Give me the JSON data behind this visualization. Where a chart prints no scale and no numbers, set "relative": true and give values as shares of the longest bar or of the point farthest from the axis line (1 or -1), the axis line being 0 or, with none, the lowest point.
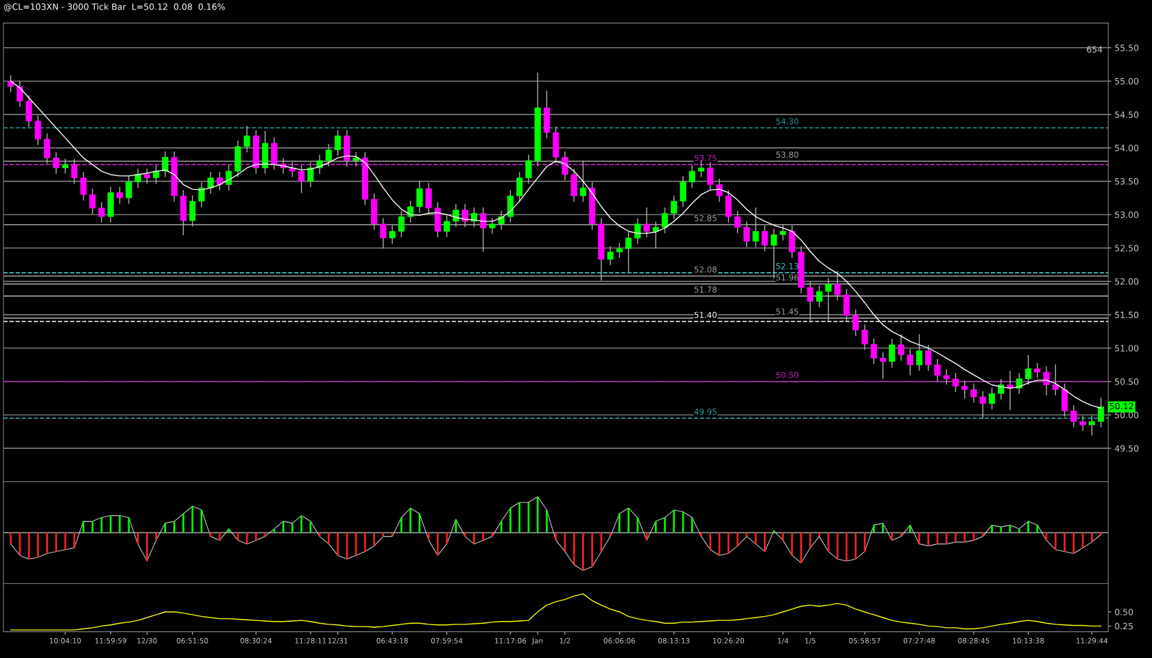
{
  "chart_data": [
    {
      "type": "candlestick",
      "title": "@CL=103XN - 3000 Tick Bar  L=50.12  0.08  0.16%",
      "categories": [
        null,
        null,
        null,
        null,
        null,
        null,
        null,
        null,
        null,
        null,
        null,
        null,
        null,
        null,
        null,
        null,
        null,
        null,
        null,
        null,
        null,
        null,
        null,
        null,
        null,
        null,
        null,
        null,
        null,
        null,
        null,
        null,
        null,
        null,
        null,
        null,
        null,
        null,
        null,
        null,
        null,
        null,
        null,
        null,
        null,
        null,
        null,
        null,
        null,
        null,
        null,
        null,
        null,
        null,
        null,
        null,
        null,
        null,
        null,
        null,
        null,
        null,
        null,
        null,
        null,
        null,
        null,
        null,
        null,
        null,
        null,
        null,
        null,
        null,
        null,
        null,
        null,
        null,
        null,
        null,
        null,
        null,
        null,
        null,
        null,
        null,
        null,
        null,
        null,
        null,
        null,
        null,
        null,
        null,
        null,
        null,
        null,
        null,
        null,
        null,
        null,
        null,
        null,
        null,
        null,
        null,
        null,
        null,
        null,
        null,
        null,
        null,
        null,
        null,
        null,
        null,
        null,
        null,
        null,
        null,
        null
      ],
      "ohlc": [
        [
          55.0,
          55.08,
          54.84,
          54.92
        ],
        [
          54.92,
          55.0,
          54.62,
          54.7
        ],
        [
          54.7,
          54.78,
          54.32,
          54.4
        ],
        [
          54.4,
          54.48,
          54.05,
          54.13
        ],
        [
          54.13,
          54.21,
          53.77,
          53.85
        ],
        [
          53.85,
          53.93,
          53.62,
          53.7
        ],
        [
          53.7,
          53.83,
          53.62,
          53.75
        ],
        [
          53.75,
          53.83,
          53.47,
          53.55
        ],
        [
          53.55,
          53.63,
          53.22,
          53.3
        ],
        [
          53.3,
          53.38,
          53.02,
          53.1
        ],
        [
          53.1,
          53.18,
          52.89,
          52.97
        ],
        [
          52.97,
          53.41,
          52.89,
          53.33
        ],
        [
          53.33,
          53.41,
          53.17,
          53.25
        ],
        [
          53.25,
          53.57,
          53.17,
          53.49
        ],
        [
          53.49,
          53.68,
          53.41,
          53.6
        ],
        [
          53.6,
          53.68,
          53.47,
          53.55
        ],
        [
          53.55,
          53.73,
          53.47,
          53.65
        ],
        [
          53.65,
          53.94,
          53.57,
          53.86
        ],
        [
          53.86,
          53.94,
          53.2,
          53.28
        ],
        [
          53.28,
          53.36,
          52.7,
          52.91
        ],
        [
          52.91,
          53.28,
          52.83,
          53.2
        ],
        [
          53.2,
          53.48,
          53.12,
          53.4
        ],
        [
          53.4,
          53.63,
          53.32,
          53.55
        ],
        [
          53.55,
          53.63,
          53.37,
          53.45
        ],
        [
          53.45,
          53.73,
          53.37,
          53.65
        ],
        [
          53.65,
          54.1,
          53.57,
          54.02
        ],
        [
          54.02,
          54.32,
          53.94,
          54.18
        ],
        [
          54.18,
          54.26,
          53.62,
          53.7
        ],
        [
          53.7,
          54.25,
          53.62,
          54.07
        ],
        [
          54.07,
          54.15,
          53.68,
          53.76
        ],
        [
          53.76,
          53.84,
          53.62,
          53.7
        ],
        [
          53.7,
          53.78,
          53.57,
          53.65
        ],
        [
          53.65,
          53.73,
          53.33,
          53.5
        ],
        [
          53.5,
          53.78,
          53.42,
          53.7
        ],
        [
          53.7,
          53.89,
          53.62,
          53.81
        ],
        [
          53.81,
          54.05,
          53.73,
          53.97
        ],
        [
          53.97,
          54.26,
          53.89,
          54.18
        ],
        [
          54.18,
          54.26,
          53.73,
          53.81
        ],
        [
          53.81,
          53.93,
          53.73,
          53.85
        ],
        [
          53.85,
          53.93,
          53.15,
          53.23
        ],
        [
          53.23,
          53.31,
          52.78,
          52.86
        ],
        [
          52.86,
          52.94,
          52.5,
          52.65
        ],
        [
          52.65,
          52.83,
          52.57,
          52.75
        ],
        [
          52.75,
          53.05,
          52.67,
          52.97
        ],
        [
          52.97,
          53.2,
          52.89,
          53.12
        ],
        [
          53.12,
          53.5,
          53.04,
          53.39
        ],
        [
          53.39,
          53.47,
          53.02,
          53.1
        ],
        [
          53.1,
          53.18,
          52.67,
          52.75
        ],
        [
          52.75,
          52.98,
          52.67,
          52.9
        ],
        [
          52.9,
          53.15,
          52.82,
          53.07
        ],
        [
          53.07,
          53.15,
          52.82,
          52.9
        ],
        [
          52.9,
          53.1,
          52.82,
          53.02
        ],
        [
          53.02,
          53.1,
          52.45,
          52.8
        ],
        [
          52.8,
          52.94,
          52.72,
          52.86
        ],
        [
          52.86,
          53.05,
          52.78,
          52.97
        ],
        [
          52.97,
          53.36,
          52.89,
          53.28
        ],
        [
          53.28,
          53.63,
          53.2,
          53.55
        ],
        [
          53.55,
          53.89,
          53.47,
          53.81
        ],
        [
          53.81,
          55.12,
          53.73,
          54.6
        ],
        [
          54.6,
          54.85,
          54.15,
          54.23
        ],
        [
          54.23,
          54.31,
          53.78,
          53.86
        ],
        [
          53.86,
          53.94,
          53.52,
          53.6
        ],
        [
          53.6,
          53.68,
          53.2,
          53.28
        ],
        [
          53.28,
          53.8,
          53.2,
          53.4
        ],
        [
          53.4,
          53.48,
          52.78,
          52.86
        ],
        [
          52.86,
          52.94,
          52.02,
          52.33
        ],
        [
          52.33,
          52.52,
          52.25,
          52.44
        ],
        [
          52.44,
          52.57,
          52.36,
          52.49
        ],
        [
          52.49,
          52.73,
          52.15,
          52.65
        ],
        [
          52.65,
          52.94,
          52.57,
          52.86
        ],
        [
          52.86,
          53.1,
          52.67,
          52.75
        ],
        [
          52.75,
          52.89,
          52.5,
          52.81
        ],
        [
          52.81,
          53.1,
          52.73,
          53.02
        ],
        [
          53.02,
          53.28,
          52.94,
          53.2
        ],
        [
          53.2,
          53.57,
          53.12,
          53.49
        ],
        [
          53.49,
          53.73,
          53.41,
          53.65
        ],
        [
          53.65,
          53.8,
          53.57,
          53.7
        ],
        [
          53.7,
          53.78,
          53.37,
          53.45
        ],
        [
          53.45,
          53.53,
          53.2,
          53.28
        ],
        [
          53.28,
          53.36,
          52.89,
          52.97
        ],
        [
          52.97,
          53.05,
          52.73,
          52.81
        ],
        [
          52.81,
          52.89,
          52.52,
          52.6
        ],
        [
          52.6,
          53.1,
          52.52,
          52.75
        ],
        [
          52.75,
          52.83,
          52.46,
          52.54
        ],
        [
          52.54,
          52.78,
          52.05,
          52.7
        ],
        [
          52.7,
          52.85,
          52.62,
          52.75
        ],
        [
          52.75,
          52.83,
          52.36,
          52.44
        ],
        [
          52.44,
          52.52,
          51.83,
          51.91
        ],
        [
          51.91,
          51.99,
          51.4,
          51.7
        ],
        [
          51.7,
          51.93,
          51.62,
          51.85
        ],
        [
          51.85,
          52.04,
          51.42,
          51.96
        ],
        [
          51.96,
          52.15,
          51.72,
          51.8
        ],
        [
          51.8,
          51.88,
          51.41,
          51.49
        ],
        [
          51.49,
          51.57,
          51.19,
          51.27
        ],
        [
          51.27,
          51.35,
          50.98,
          51.06
        ],
        [
          51.06,
          51.14,
          50.77,
          50.85
        ],
        [
          50.85,
          50.93,
          50.55,
          50.8
        ],
        [
          50.8,
          51.13,
          50.72,
          51.05
        ],
        [
          51.05,
          51.2,
          50.82,
          50.9
        ],
        [
          50.9,
          50.98,
          50.6,
          50.75
        ],
        [
          50.75,
          51.2,
          50.67,
          50.96
        ],
        [
          50.96,
          51.04,
          50.67,
          50.75
        ],
        [
          50.75,
          50.83,
          50.51,
          50.59
        ],
        [
          50.59,
          50.67,
          50.46,
          50.54
        ],
        [
          50.54,
          50.62,
          50.35,
          50.43
        ],
        [
          50.43,
          50.51,
          50.25,
          50.38
        ],
        [
          50.38,
          50.46,
          50.19,
          50.27
        ],
        [
          50.27,
          50.35,
          49.95,
          50.17
        ],
        [
          50.17,
          50.4,
          50.09,
          50.32
        ],
        [
          50.32,
          50.53,
          50.24,
          50.45
        ],
        [
          50.45,
          50.65,
          50.08,
          50.4
        ],
        [
          50.4,
          50.62,
          50.32,
          50.54
        ],
        [
          50.54,
          50.89,
          50.46,
          50.69
        ],
        [
          50.69,
          50.77,
          50.56,
          50.64
        ],
        [
          50.64,
          50.72,
          50.3,
          50.45
        ],
        [
          50.45,
          50.75,
          50.3,
          50.38
        ],
        [
          50.38,
          50.46,
          49.98,
          50.06
        ],
        [
          50.06,
          50.14,
          49.82,
          49.9
        ],
        [
          49.9,
          49.98,
          49.77,
          49.85
        ],
        [
          49.85,
          49.98,
          49.7,
          49.9
        ],
        [
          49.9,
          50.25,
          49.82,
          50.12
        ]
      ],
      "series": [
        {
          "type": "line",
          "color": "#ffffff",
          "values": [
            55.0,
            54.9,
            54.75,
            54.6,
            54.45,
            54.3,
            54.15,
            54.0,
            53.85,
            53.75,
            53.65,
            53.6,
            53.58,
            53.58,
            53.6,
            53.62,
            53.65,
            53.67,
            53.6,
            53.45,
            53.38,
            53.37,
            53.4,
            53.45,
            53.52,
            53.6,
            53.7,
            53.75,
            53.76,
            53.75,
            53.73,
            53.7,
            53.67,
            53.68,
            53.72,
            53.78,
            53.85,
            53.88,
            53.87,
            53.78,
            53.6,
            53.4,
            53.22,
            53.08,
            53.0,
            52.99,
            53.02,
            53.03,
            53.0,
            52.96,
            52.93,
            52.92,
            52.9,
            52.9,
            52.95,
            53.05,
            53.2,
            53.38,
            53.55,
            53.72,
            53.8,
            53.76,
            53.65,
            53.5,
            53.32,
            53.12,
            52.95,
            52.83,
            52.75,
            52.72,
            52.72,
            52.74,
            52.8,
            52.9,
            53.02,
            53.17,
            53.3,
            53.37,
            53.38,
            53.33,
            53.22,
            53.08,
            52.97,
            52.9,
            52.84,
            52.8,
            52.75,
            52.62,
            52.45,
            52.3,
            52.2,
            52.12,
            52.0,
            51.85,
            51.68,
            51.5,
            51.35,
            51.25,
            51.18,
            51.1,
            51.05,
            51.0,
            50.93,
            50.85,
            50.77,
            50.68,
            50.6,
            50.52,
            50.45,
            50.42,
            50.4,
            50.42,
            50.48,
            50.52,
            50.52,
            50.47,
            50.38,
            50.28,
            50.2,
            50.14,
            50.1
          ]
        }
      ],
      "ylim": [
        49.0,
        55.87
      ],
      "yticks": [
        {
          "value": 49.5,
          "label": "49.50"
        },
        {
          "value": 50.0,
          "label": "50.00"
        },
        {
          "value": 50.5,
          "label": "50.50"
        },
        {
          "value": 51.0,
          "label": "51.00"
        },
        {
          "value": 51.5,
          "label": "51.50"
        },
        {
          "value": 52.0,
          "label": "52.00"
        },
        {
          "value": 52.5,
          "label": "52.50"
        },
        {
          "value": 53.0,
          "label": "53.00"
        },
        {
          "value": 53.5,
          "label": "53.50"
        },
        {
          "value": 54.0,
          "label": "54.00"
        },
        {
          "value": 54.5,
          "label": "54.50"
        },
        {
          "value": 55.0,
          "label": "55.00"
        },
        {
          "value": 55.5,
          "label": "55.50"
        }
      ],
      "grid": "y",
      "tick_labels": "y",
      "ref_lines": [
        {
          "axis": "y",
          "value": 54.3,
          "label": "54.30",
          "color": "#2e9c9c",
          "line_style": "dashed"
        },
        {
          "axis": "y",
          "value": 53.75,
          "label": "53.75",
          "color": "#c020c0",
          "line_style": "dashed"
        },
        {
          "axis": "y",
          "value": 53.8,
          "label": "53.80",
          "color": "#a0a0a0",
          "line_style": "solid"
        },
        {
          "axis": "y",
          "value": 52.85,
          "label": "52.85",
          "color": "#a0a0a0",
          "line_style": "solid"
        },
        {
          "axis": "y",
          "value": 52.13,
          "label": "52.13",
          "color": "#40c0c0",
          "line_style": "dashed"
        },
        {
          "axis": "y",
          "value": 52.08,
          "label": "52.08",
          "color": "#a0a0a0",
          "line_style": "solid"
        },
        {
          "axis": "y",
          "value": 51.96,
          "label": "51.96",
          "color": "#a0a0a0",
          "line_style": "solid"
        },
        {
          "axis": "y",
          "value": 51.78,
          "label": "51.78",
          "color": "#a0a0a0",
          "line_style": "solid"
        },
        {
          "axis": "y",
          "value": 51.45,
          "label": "51.45",
          "color": "#a0a0a0",
          "line_style": "solid"
        },
        {
          "axis": "y",
          "value": 51.4,
          "label": "51.40",
          "color": "#ffffff",
          "line_style": "dashed"
        },
        {
          "axis": "y",
          "value": 50.5,
          "label": "50.50",
          "color": "#c020c0",
          "line_style": "dashed"
        },
        {
          "axis": "y",
          "value": 49.95,
          "label": "49.95",
          "color": "#2e9c9c",
          "line_style": "dashed"
        }
      ],
      "annotations": [
        "654",
        {
          "text": "50.12",
          "y": 50.12
        }
      ]
    },
    {
      "type": "bar",
      "relative": true,
      "tick_labels": false,
      "categories": [
        null,
        null,
        null,
        null,
        null,
        null,
        null,
        null,
        null,
        null,
        null,
        null,
        null,
        null,
        null,
        null,
        null,
        null,
        null,
        null,
        null,
        null,
        null,
        null,
        null,
        null,
        null,
        null,
        null,
        null,
        null,
        null,
        null,
        null,
        null,
        null,
        null,
        null,
        null,
        null,
        null,
        null,
        null,
        null,
        null,
        null,
        null,
        null,
        null,
        null,
        null,
        null,
        null,
        null,
        null,
        null,
        null,
        null,
        null,
        null,
        null,
        null,
        null,
        null,
        null,
        null,
        null,
        null,
        null,
        null,
        null,
        null,
        null,
        null,
        null,
        null,
        null,
        null,
        null,
        null,
        null,
        null,
        null,
        null,
        null,
        null,
        null,
        null,
        null,
        null,
        null,
        null,
        null,
        null,
        null,
        null,
        null,
        null,
        null,
        null,
        null,
        null,
        null,
        null,
        null,
        null,
        null,
        null,
        null,
        null,
        null,
        null,
        null,
        null,
        null,
        null,
        null,
        null,
        null,
        null,
        null
      ],
      "values": [
        -0.3,
        -0.6,
        -0.7,
        -0.65,
        -0.55,
        -0.5,
        -0.45,
        -0.4,
        0.3,
        0.3,
        0.4,
        0.45,
        0.45,
        0.4,
        -0.3,
        -0.75,
        -0.2,
        0.25,
        0.3,
        0.5,
        0.7,
        0.6,
        -0.1,
        -0.2,
        0.1,
        -0.2,
        -0.3,
        -0.2,
        -0.1,
        0.1,
        0.3,
        0.25,
        0.45,
        0.3,
        -0.1,
        -0.3,
        -0.6,
        -0.7,
        -0.6,
        -0.5,
        -0.35,
        -0.1,
        -0.1,
        0.4,
        0.65,
        0.5,
        -0.2,
        -0.6,
        -0.3,
        0.35,
        -0.1,
        -0.3,
        -0.2,
        -0.1,
        0.3,
        0.65,
        0.8,
        0.8,
        0.95,
        0.6,
        -0.2,
        -0.5,
        -0.85,
        -1.0,
        -0.9,
        -0.5,
        -0.1,
        0.5,
        0.65,
        0.4,
        -0.2,
        0.3,
        0.4,
        0.6,
        0.55,
        0.4,
        -0.1,
        -0.45,
        -0.6,
        -0.55,
        -0.35,
        -0.1,
        -0.3,
        -0.5,
        0.05,
        -0.2,
        -0.6,
        -0.8,
        -0.4,
        -0.1,
        -0.5,
        -0.7,
        -0.75,
        -0.7,
        -0.5,
        0.2,
        0.25,
        -0.2,
        -0.1,
        0.2,
        -0.3,
        -0.35,
        -0.3,
        -0.3,
        -0.25,
        -0.25,
        -0.2,
        -0.1,
        0.2,
        0.15,
        0.2,
        0.1,
        0.3,
        0.2,
        -0.2,
        -0.45,
        -0.5,
        -0.55,
        -0.4,
        -0.25,
        -0.05
      ],
      "colors": [
        "#ff2020",
        "#ff2020",
        "#ff2020",
        "#ff2020",
        "#ff2020",
        "#ff2020",
        "#ff2020",
        "#ff2020",
        "#00ff00",
        "#00ff00",
        "#00ff00",
        "#00ff00",
        "#00ff00",
        "#00ff00",
        "#ff2020",
        "#ff2020",
        "#ff2020",
        "#00ff00",
        "#00ff00",
        "#00ff00",
        "#00ff00",
        "#00ff00",
        "#ff2020",
        "#ff2020",
        "#00ff00",
        "#ff2020",
        "#ff2020",
        "#ff2020",
        "#ff2020",
        "#00ff00",
        "#00ff00",
        "#00ff00",
        "#00ff00",
        "#00ff00",
        "#ff2020",
        "#ff2020",
        "#ff2020",
        "#ff2020",
        "#ff2020",
        "#ff2020",
        "#ff2020",
        "#ff2020",
        "#ff2020",
        "#00ff00",
        "#00ff00",
        "#00ff00",
        "#ff2020",
        "#ff2020",
        "#ff2020",
        "#00ff00",
        "#ff2020",
        "#ff2020",
        "#ff2020",
        "#ff2020",
        "#00ff00",
        "#00ff00",
        "#00ff00",
        "#00ff00",
        "#00ff00",
        "#00ff00",
        "#ff2020",
        "#ff2020",
        "#ff2020",
        "#ff2020",
        "#ff2020",
        "#ff2020",
        "#ff2020",
        "#00ff00",
        "#00ff00",
        "#00ff00",
        "#ff2020",
        "#00ff00",
        "#00ff00",
        "#00ff00",
        "#00ff00",
        "#00ff00",
        "#ff2020",
        "#ff2020",
        "#ff2020",
        "#ff2020",
        "#ff2020",
        "#ff2020",
        "#ff2020",
        "#ff2020",
        "#00ff00",
        "#ff2020",
        "#ff2020",
        "#ff2020",
        "#ff2020",
        "#ff2020",
        "#ff2020",
        "#ff2020",
        "#ff2020",
        "#ff2020",
        "#ff2020",
        "#00ff00",
        "#00ff00",
        "#ff2020",
        "#ff2020",
        "#00ff00",
        "#ff2020",
        "#ff2020",
        "#ff2020",
        "#ff2020",
        "#ff2020",
        "#ff2020",
        "#ff2020",
        "#ff2020",
        "#00ff00",
        "#00ff00",
        "#00ff00",
        "#00ff00",
        "#00ff00",
        "#00ff00",
        "#ff2020",
        "#ff2020",
        "#ff2020",
        "#ff2020",
        "#ff2020",
        "#ff2020",
        "#ff2020"
      ]
    },
    {
      "type": "line",
      "categories": [
        null,
        null,
        null,
        null,
        null,
        null,
        "10:04:10",
        null,
        null,
        null,
        null,
        "11:59:59",
        null,
        null,
        null,
        "12/30",
        null,
        null,
        null,
        null,
        "06:51:50",
        null,
        null,
        null,
        null,
        null,
        null,
        "08:30:24",
        null,
        null,
        null,
        null,
        null,
        "11:28:11",
        null,
        null,
        "12/31",
        null,
        null,
        null,
        null,
        null,
        "06:43:18",
        null,
        null,
        null,
        null,
        null,
        "07:59:54",
        null,
        null,
        null,
        null,
        null,
        null,
        "11:17:06",
        null,
        null,
        "Jan",
        null,
        null,
        "1/2",
        null,
        null,
        null,
        null,
        null,
        "06:06:06",
        null,
        null,
        null,
        null,
        null,
        "08:13:13",
        null,
        null,
        null,
        null,
        null,
        "10:26:20",
        null,
        null,
        null,
        null,
        null,
        "1/4",
        null,
        null,
        "1/5",
        null,
        null,
        null,
        null,
        null,
        "05:58:57",
        null,
        null,
        null,
        null,
        null,
        "07:27:48",
        null,
        null,
        null,
        null,
        null,
        "08:28:45",
        null,
        null,
        null,
        null,
        null,
        "10:13:38",
        null,
        null,
        null,
        null,
        null,
        null,
        "11:29:44",
        null
      ],
      "series": [
        {
          "color": "#ffff00",
          "values": [
            0.18,
            0.18,
            0.18,
            0.18,
            0.18,
            0.18,
            0.18,
            0.18,
            0.2,
            0.22,
            0.25,
            0.27,
            0.3,
            0.32,
            0.35,
            0.4,
            0.45,
            0.5,
            0.5,
            0.48,
            0.45,
            0.42,
            0.4,
            0.38,
            0.38,
            0.37,
            0.36,
            0.35,
            0.34,
            0.33,
            0.33,
            0.34,
            0.35,
            0.33,
            0.3,
            0.28,
            0.27,
            0.25,
            0.24,
            0.24,
            0.23,
            0.24,
            0.26,
            0.28,
            0.3,
            0.3,
            0.28,
            0.27,
            0.27,
            0.28,
            0.28,
            0.29,
            0.3,
            0.32,
            0.33,
            0.33,
            0.34,
            0.35,
            0.5,
            0.62,
            0.68,
            0.72,
            0.78,
            0.82,
            0.7,
            0.62,
            0.55,
            0.5,
            0.42,
            0.38,
            0.35,
            0.33,
            0.3,
            0.3,
            0.32,
            0.32,
            0.33,
            0.34,
            0.35,
            0.35,
            0.36,
            0.38,
            0.4,
            0.42,
            0.45,
            0.5,
            0.55,
            0.6,
            0.62,
            0.6,
            0.62,
            0.65,
            0.62,
            0.55,
            0.5,
            0.45,
            0.4,
            0.35,
            0.32,
            0.3,
            0.28,
            0.25,
            0.24,
            0.22,
            0.22,
            0.2,
            0.2,
            0.22,
            0.25,
            0.28,
            0.3,
            0.33,
            0.35,
            0.33,
            0.3,
            0.28,
            0.27,
            0.26,
            0.26,
            0.25,
            0.25
          ]
        }
      ],
      "ylim": [
        0.15,
        1.0
      ],
      "yticks": [
        {
          "value": 0.5,
          "label": "0.50"
        },
        {
          "value": 0.25,
          "label": "0.25"
        }
      ]
    }
  ]
}
